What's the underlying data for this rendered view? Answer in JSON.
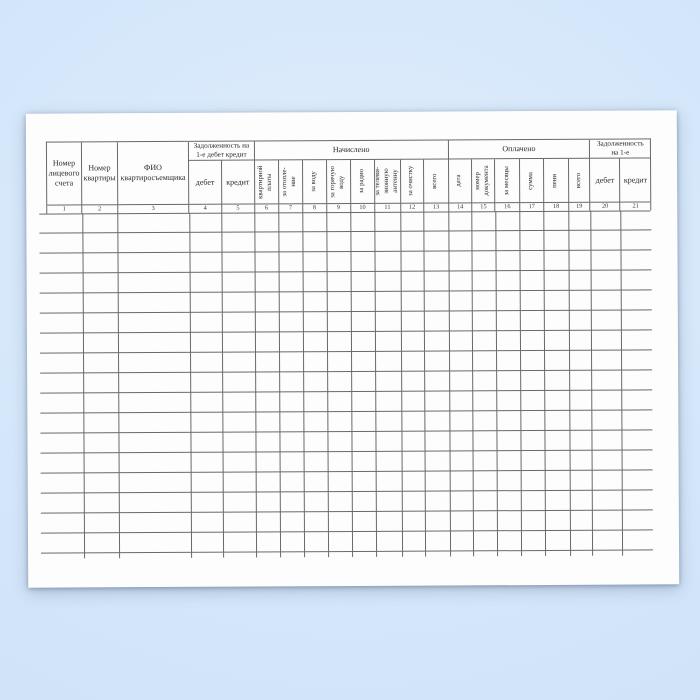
{
  "scene": {
    "background_top": "#e1eefd",
    "background_bottom": "#cadef5",
    "paper_color": "#fdfdfe"
  },
  "table": {
    "line_color": "#67696c",
    "text_color": "#2b2b2b",
    "groups": {
      "debt_start": {
        "lines": [
          "Задолженность на",
          "1-е дебет кредит"
        ]
      },
      "accrued": {
        "label": "Начислено"
      },
      "paid": {
        "label": "Оплачено"
      },
      "debt_end": {
        "lines": [
          "Задолженность",
          "на 1-е"
        ]
      }
    },
    "columns": [
      {
        "num": "1",
        "lines": [
          "Номер",
          "лицевого",
          "счета"
        ]
      },
      {
        "num": "2",
        "lines": [
          "Номер",
          "квартиры"
        ]
      },
      {
        "num": "3",
        "lines": [
          "ФИО",
          "квартиросъемщика"
        ]
      },
      {
        "num": "4",
        "label": "дебет"
      },
      {
        "num": "5",
        "label": "кредит"
      },
      {
        "num": "6",
        "lines": [
          "квартирной",
          "платы"
        ],
        "vertical": true
      },
      {
        "num": "7",
        "lines": [
          "за отопле-",
          "ние"
        ],
        "vertical": true
      },
      {
        "num": "8",
        "label": "за воду",
        "vertical": true
      },
      {
        "num": "9",
        "lines": [
          "за горячую",
          "воду"
        ],
        "vertical": true
      },
      {
        "num": "10",
        "label": "за радио",
        "vertical": true
      },
      {
        "num": "11",
        "lines": [
          "за телеви-",
          "зионную",
          "антенну"
        ],
        "vertical": true
      },
      {
        "num": "12",
        "label": "за очистку",
        "vertical": true
      },
      {
        "num": "13",
        "label": "всего",
        "vertical": true
      },
      {
        "num": "14",
        "label": "дата",
        "vertical": true
      },
      {
        "num": "15",
        "lines": [
          "номер",
          "документа"
        ],
        "vertical": true
      },
      {
        "num": "16",
        "label": "за месяцы",
        "vertical": true
      },
      {
        "num": "17",
        "label": "сумма",
        "vertical": true
      },
      {
        "num": "18",
        "label": "пени",
        "vertical": true
      },
      {
        "num": "19",
        "label": "всего",
        "vertical": true
      },
      {
        "num": "20",
        "label": "дебет"
      },
      {
        "num": "21",
        "label": "кредит"
      }
    ],
    "data_row_count": 17
  }
}
